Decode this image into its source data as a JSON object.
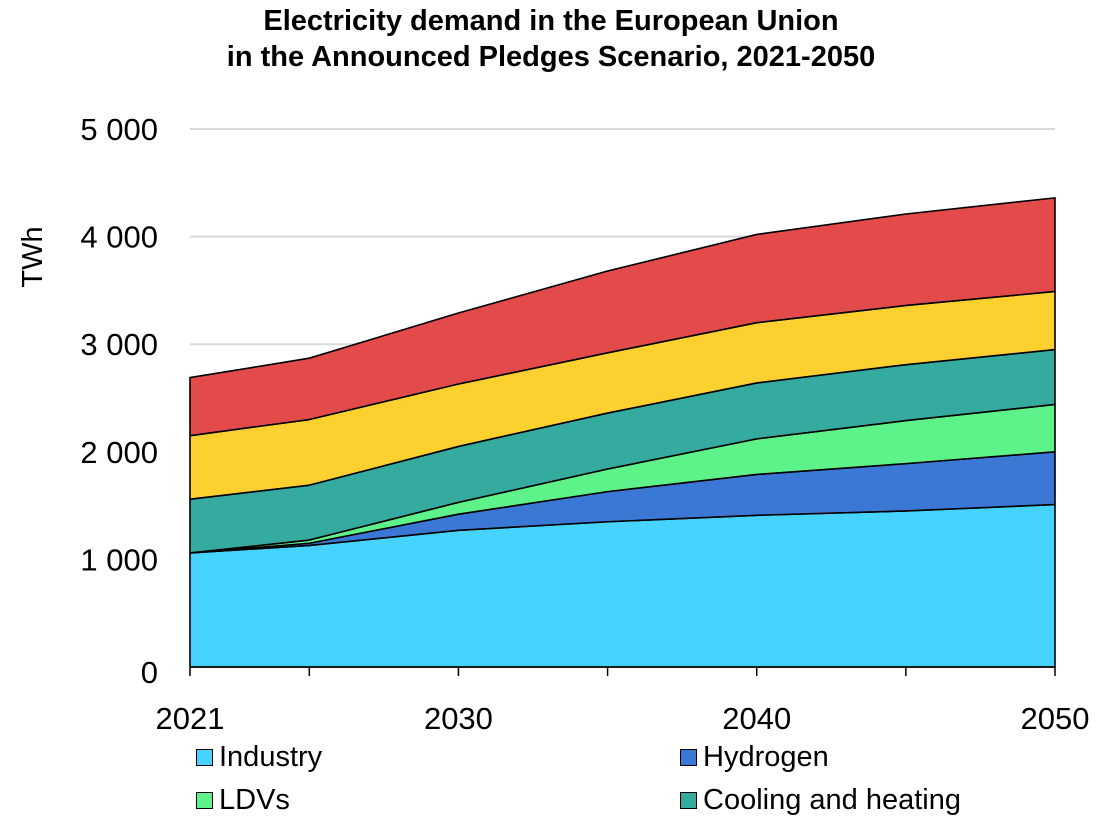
{
  "title_line1": "Electricity demand in the European Union",
  "title_line2": "in the Announced Pledges Scenario, 2021-2050",
  "chart_data": {
    "type": "area",
    "stacked": true,
    "title": "Electricity demand in the European Union in the Announced Pledges Scenario, 2021-2050",
    "ylabel": "TWh",
    "xlabel": "",
    "x": [
      2021,
      2025,
      2030,
      2035,
      2040,
      2045,
      2050
    ],
    "x_ticks": [
      2021,
      2030,
      2040,
      2050
    ],
    "y_ticks": [
      0,
      1000,
      2000,
      3000,
      4000,
      5000
    ],
    "y_tick_labels": [
      "0",
      "1 000",
      "2 000",
      "3 000",
      "4 000",
      "5 000"
    ],
    "ylim": [
      0,
      5000
    ],
    "grid": true,
    "legend_position": "bottom",
    "series": [
      {
        "name": "Industry",
        "color": "#47d3ff",
        "values": [
          1060,
          1130,
          1270,
          1350,
          1410,
          1450,
          1510
        ]
      },
      {
        "name": "Hydrogen",
        "color": "#3b78d6",
        "values": [
          0,
          20,
          150,
          280,
          380,
          440,
          490
        ]
      },
      {
        "name": "LDVs",
        "color": "#5ef28a",
        "values": [
          0,
          30,
          110,
          210,
          330,
          400,
          440
        ]
      },
      {
        "name": "Cooling and heating",
        "color": "#34ab9e",
        "values": [
          500,
          510,
          520,
          520,
          520,
          520,
          510
        ]
      },
      {
        "name": "",
        "color": "#fcd02e",
        "values": [
          590,
          610,
          580,
          560,
          560,
          550,
          540
        ]
      },
      {
        "name": "",
        "color": "#e34b4a",
        "values": [
          540,
          570,
          660,
          760,
          820,
          850,
          870
        ]
      }
    ]
  }
}
